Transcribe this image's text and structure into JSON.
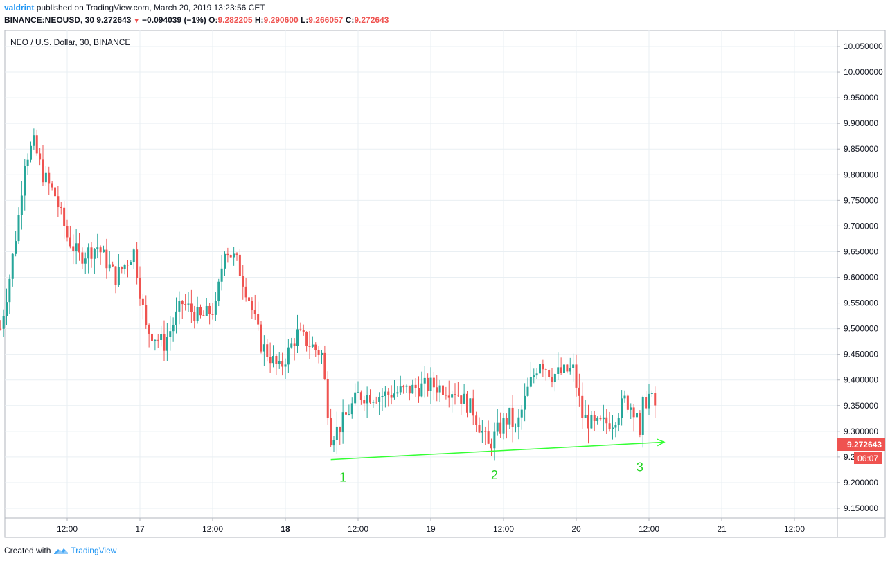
{
  "header": {
    "author": "valdrint",
    "published_text": "published on TradingView.com, March 20, 2019 13:23:56 CET",
    "symbol": "BINANCE:NEOUSD, 30",
    "last_price": "9.272643",
    "change": "−0.094039 (−1%)",
    "o_label": "O:",
    "o_value": "9.282205",
    "h_label": "H:",
    "h_value": "9.290600",
    "l_label": "L:",
    "l_value": "9.266057",
    "c_label": "C:",
    "c_value": "9.272643"
  },
  "footer": {
    "created_with": "Created with",
    "brand": "TradingView"
  },
  "colors": {
    "up": "#26a69a",
    "down": "#ef5350",
    "grid": "#e9eff3",
    "trendline": "#33ff33",
    "brand": "#2196f3"
  },
  "chart_data": {
    "type": "candlestick",
    "title": "NEO / U.S. Dollar, 30, BINANCE",
    "interval_minutes": 30,
    "y_range": [
      9.13,
      10.085
    ],
    "y_ticks": [
      "10.050000",
      "10.000000",
      "9.950000",
      "9.900000",
      "9.850000",
      "9.800000",
      "9.750000",
      "9.700000",
      "9.650000",
      "9.600000",
      "9.550000",
      "9.500000",
      "9.450000",
      "9.400000",
      "9.350000",
      "9.300000",
      "9.250000",
      "9.200000",
      "9.150000"
    ],
    "x_ticks": [
      {
        "label": "12:00",
        "time": "2019-03-16 12:00"
      },
      {
        "label": "17",
        "time": "2019-03-17 00:00"
      },
      {
        "label": "12:00",
        "time": "2019-03-17 12:00"
      },
      {
        "label": "18",
        "time": "2019-03-18 00:00"
      },
      {
        "label": "12:00",
        "time": "2019-03-18 12:00"
      },
      {
        "label": "19",
        "time": "2019-03-19 00:00"
      },
      {
        "label": "12:00",
        "time": "2019-03-19 12:00"
      },
      {
        "label": "20",
        "time": "2019-03-20 00:00"
      },
      {
        "label": "12:00",
        "time": "2019-03-20 12:00"
      },
      {
        "label": "21",
        "time": "2019-03-21 00:00"
      },
      {
        "label": "12:00",
        "time": "2019-03-21 12:00"
      }
    ],
    "current_price_label": "9.272643",
    "countdown_label": "06:07",
    "price_keypoints": [
      [
        "2019-03-16 01:00",
        9.5
      ],
      [
        "2019-03-16 02:30",
        9.6
      ],
      [
        "2019-03-16 04:00",
        9.72
      ],
      [
        "2019-03-16 05:00",
        9.83
      ],
      [
        "2019-03-16 06:30",
        9.86
      ],
      [
        "2019-03-16 08:00",
        9.8
      ],
      [
        "2019-03-16 10:00",
        9.76
      ],
      [
        "2019-03-16 12:00",
        9.68
      ],
      [
        "2019-03-16 14:00",
        9.64
      ],
      [
        "2019-03-16 17:00",
        9.66
      ],
      [
        "2019-03-16 20:00",
        9.6
      ],
      [
        "2019-03-16 23:00",
        9.65
      ],
      [
        "2019-03-17 01:00",
        9.5
      ],
      [
        "2019-03-17 04:00",
        9.47
      ],
      [
        "2019-03-17 07:00",
        9.55
      ],
      [
        "2019-03-17 10:00",
        9.52
      ],
      [
        "2019-03-17 12:30",
        9.54
      ],
      [
        "2019-03-17 14:00",
        9.66
      ],
      [
        "2019-03-17 16:00",
        9.63
      ],
      [
        "2019-03-17 18:00",
        9.56
      ],
      [
        "2019-03-17 20:00",
        9.47
      ],
      [
        "2019-03-17 23:00",
        9.42
      ],
      [
        "2019-03-18 02:00",
        9.49
      ],
      [
        "2019-03-18 06:00",
        9.45
      ],
      [
        "2019-03-18 07:30",
        9.29
      ],
      [
        "2019-03-18 09:00",
        9.31
      ],
      [
        "2019-03-18 12:00",
        9.37
      ],
      [
        "2019-03-18 16:00",
        9.37
      ],
      [
        "2019-03-18 20:00",
        9.38
      ],
      [
        "2019-03-19 00:00",
        9.39
      ],
      [
        "2019-03-19 04:00",
        9.38
      ],
      [
        "2019-03-19 07:00",
        9.34
      ],
      [
        "2019-03-19 09:30",
        9.27
      ],
      [
        "2019-03-19 11:00",
        9.3
      ],
      [
        "2019-03-19 13:00",
        9.33
      ],
      [
        "2019-03-19 14:00",
        9.3
      ],
      [
        "2019-03-19 16:00",
        9.38
      ],
      [
        "2019-03-19 18:00",
        9.44
      ],
      [
        "2019-03-19 20:00",
        9.41
      ],
      [
        "2019-03-19 23:30",
        9.42
      ],
      [
        "2019-03-20 01:00",
        9.33
      ],
      [
        "2019-03-20 03:00",
        9.31
      ],
      [
        "2019-03-20 06:00",
        9.32
      ],
      [
        "2019-03-20 08:00",
        9.36
      ],
      [
        "2019-03-20 10:00",
        9.34
      ],
      [
        "2019-03-20 10:30",
        9.28
      ],
      [
        "2019-03-20 11:00",
        9.35
      ],
      [
        "2019-03-20 12:00",
        9.37
      ],
      [
        "2019-03-20 13:00",
        9.35
      ]
    ],
    "trendline": {
      "from": [
        "2019-03-18 07:30",
        9.245
      ],
      "to": [
        "2019-03-20 14:30",
        9.279
      ]
    },
    "annotations": [
      {
        "text": "1",
        "time": "2019-03-18 09:30",
        "price": 9.21
      },
      {
        "text": "2",
        "time": "2019-03-19 10:30",
        "price": 9.215
      },
      {
        "text": "3",
        "time": "2019-03-20 10:30",
        "price": 9.23
      }
    ]
  }
}
